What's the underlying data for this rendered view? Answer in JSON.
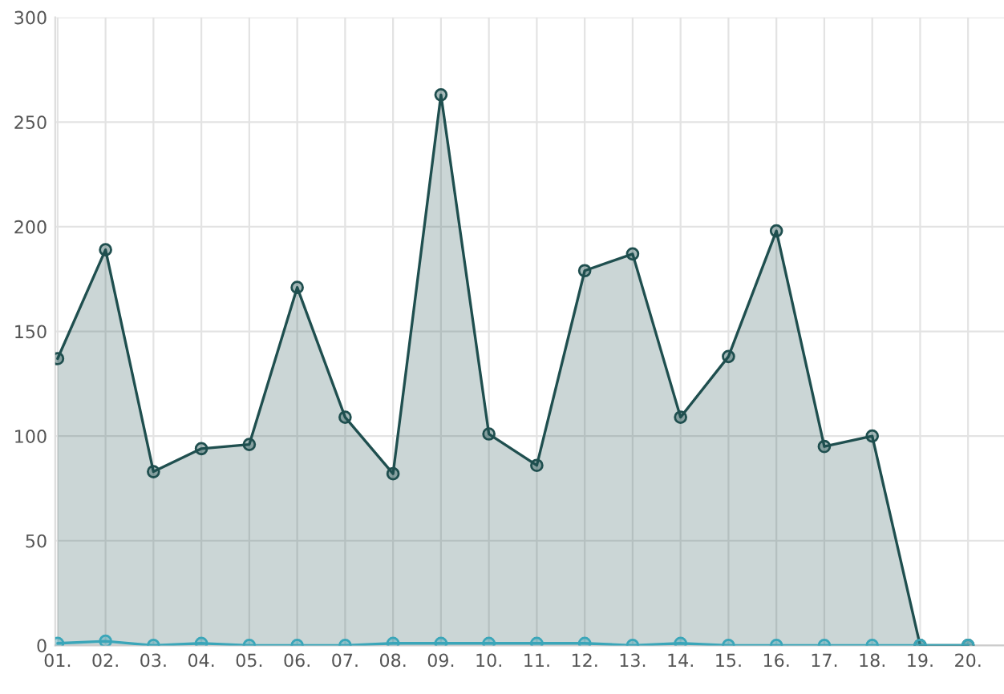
{
  "chart_data": {
    "type": "area",
    "categories": [
      "01.",
      "02.",
      "03.",
      "04.",
      "05.",
      "06.",
      "07.",
      "08.",
      "09.",
      "10.",
      "11.",
      "12.",
      "13.",
      "14.",
      "15.",
      "16.",
      "17.",
      "18.",
      "19.",
      "20."
    ],
    "series": [
      {
        "color": "#1f4f4f",
        "values": [
          137,
          189,
          83,
          94,
          96,
          171,
          109,
          82,
          263,
          101,
          86,
          179,
          187,
          109,
          138,
          198,
          95,
          100,
          0,
          0
        ]
      },
      {
        "type": "line",
        "color": "#3aa6b9",
        "values": [
          1,
          2,
          0,
          1,
          0,
          0,
          0,
          1,
          1,
          1,
          1,
          1,
          0,
          1,
          0,
          0,
          0,
          0,
          0,
          0
        ]
      }
    ],
    "ylim": [
      0,
      300
    ],
    "yticks": [
      0,
      50,
      100,
      150,
      200,
      250,
      300
    ],
    "grid": true,
    "marker": "circle"
  }
}
